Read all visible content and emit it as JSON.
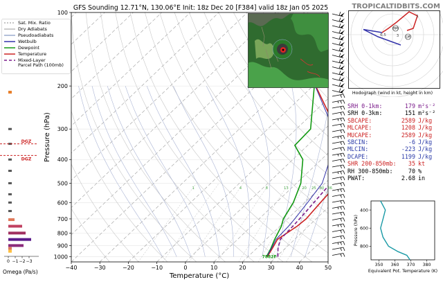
{
  "header": {
    "title": "GFS Sounding 12.71°N, 130.06°E Init: 18z Dec 20 [F384] valid 18z Jan 05 2025",
    "site": "TROPICALTIDBITS.COM"
  },
  "legend": {
    "items": [
      {
        "label": "Sat. Mix. Ratio",
        "color": "#b0b0b0",
        "dash": "2,2"
      },
      {
        "label": "Dry Adiabats",
        "color": "#bbbbbb",
        "dash": ""
      },
      {
        "label": "Pseudoadiabats",
        "color": "#9aaace",
        "dash": ""
      },
      {
        "label": "Wetbulb",
        "color": "#3333aa",
        "dash": ""
      },
      {
        "label": "Dewpoint",
        "color": "#129912",
        "dash": ""
      },
      {
        "label": "Temperature",
        "color": "#cc2222",
        "dash": ""
      },
      {
        "label": "Mixed-Layer\nParcel Path (100mb)",
        "color": "#7a1a8a",
        "dash": "4,3"
      }
    ]
  },
  "chart_data": [
    {
      "type": "line",
      "name": "skew-t",
      "xlabel": "Temperature (°C)",
      "ylabel": "Pressure (hPa)",
      "xlim": [
        -40,
        50
      ],
      "ylim": [
        1050,
        100
      ],
      "yscale": "log",
      "xticks": [
        -40,
        -30,
        -20,
        -10,
        0,
        10,
        20,
        30,
        40,
        50
      ],
      "yticks": [
        100,
        200,
        300,
        400,
        500,
        600,
        700,
        800,
        900,
        1000
      ],
      "series": [
        {
          "name": "Temperature",
          "color": "#cc2222",
          "points": [
            [
              1000,
              26.8
            ],
            [
              925,
              25.5
            ],
            [
              850,
              24.0
            ],
            [
              750,
              26.0
            ],
            [
              700,
              26.5
            ],
            [
              600,
              25.5
            ],
            [
              500,
              24.5
            ],
            [
              400,
              19.0
            ],
            [
              300,
              4.0
            ],
            [
              200,
              -19.0
            ],
            [
              100,
              -33.0
            ]
          ]
        },
        {
          "name": "Dewpoint",
          "color": "#129912",
          "points": [
            [
              1000,
              26.5
            ],
            [
              925,
              25.0
            ],
            [
              850,
              23.0
            ],
            [
              750,
              20.5
            ],
            [
              700,
              18.5
            ],
            [
              600,
              16.0
            ],
            [
              500,
              11.5
            ],
            [
              400,
              3.5
            ],
            [
              350,
              -4.5
            ],
            [
              300,
              -5.0
            ],
            [
              200,
              -19.5
            ],
            [
              100,
              -33.0
            ]
          ]
        },
        {
          "name": "Wetbulb",
          "color": "#3333aa",
          "points": [
            [
              1000,
              26.6
            ],
            [
              925,
              25.2
            ],
            [
              850,
              23.5
            ],
            [
              750,
              23.0
            ],
            [
              700,
              22.5
            ],
            [
              600,
              21.0
            ],
            [
              500,
              19.0
            ],
            [
              400,
              13.0
            ],
            [
              300,
              3.0
            ],
            [
              200,
              -19.2
            ],
            [
              100,
              -33.0
            ]
          ]
        },
        {
          "name": "Mixed-Layer Parcel Path (100mb)",
          "color": "#7a1a8a",
          "dash": "5,3",
          "points": [
            [
              1000,
              30.5
            ],
            [
              925,
              27.5
            ],
            [
              850,
              25.0
            ],
            [
              750,
              24.5
            ],
            [
              700,
              24.2
            ],
            [
              600,
              23.2
            ],
            [
              500,
              22.0
            ],
            [
              400,
              19.5
            ],
            [
              300,
              14.0
            ],
            [
              200,
              6.0
            ],
            [
              100,
              -33.0
            ]
          ]
        }
      ],
      "isotherm_labels": [
        {
          "value": 1,
          "p": 520
        },
        {
          "value": 4,
          "p": 520
        },
        {
          "value": 8,
          "p": 520
        },
        {
          "value": 13,
          "p": 520
        },
        {
          "value": 20,
          "p": 520
        },
        {
          "value": 25,
          "p": 520
        },
        {
          "value": 30,
          "p": 520
        },
        {
          "value": 36,
          "p": 520
        }
      ],
      "parcel_label": {
        "text": "7882F",
        "p": 1000
      }
    },
    {
      "type": "line",
      "name": "theta-e",
      "xlabel": "Equivalent Pot. Temperature (K)",
      "ylabel": "Pressure (hPa)",
      "xlim": [
        345,
        385
      ],
      "ylim": [
        950,
        300
      ],
      "xticks": [
        350,
        360,
        370,
        380
      ],
      "yticks": [
        400,
        600,
        800
      ],
      "series": [
        {
          "name": "theta-e",
          "color": "#1a9aa6",
          "points": [
            [
              300,
              351.0
            ],
            [
              400,
              354.0
            ],
            [
              500,
              352.5
            ],
            [
              600,
              351.0
            ],
            [
              700,
              352.5
            ],
            [
              800,
              356.0
            ],
            [
              860,
              362.0
            ],
            [
              900,
              367.5
            ],
            [
              950,
              369.5
            ]
          ]
        }
      ]
    },
    {
      "type": "bar",
      "name": "omega",
      "xlabel": "Omega (Pa/s)",
      "xticks": [
        0,
        -1,
        -2,
        -3
      ],
      "xlim": [
        1.2,
        -4.2
      ],
      "categories": [
        300,
        350,
        400,
        450,
        500,
        550,
        600,
        650,
        700,
        750,
        800,
        850,
        900,
        925
      ],
      "values": [
        -0.1,
        -0.1,
        -0.1,
        -0.1,
        -0.1,
        -0.1,
        -0.1,
        -0.1,
        -0.1,
        -0.1,
        -0.1,
        -0.1,
        -0.1,
        -0.1
      ],
      "bars": [
        {
          "p": 212,
          "value": -0.5,
          "color": "#e87e2a"
        },
        {
          "p": 300,
          "value": -0.1,
          "color": "#555555"
        },
        {
          "p": 345,
          "value": -0.1,
          "color": "#555555"
        },
        {
          "p": 400,
          "value": -0.1,
          "color": "#555555"
        },
        {
          "p": 445,
          "value": -0.1,
          "color": "#555555"
        },
        {
          "p": 500,
          "value": -0.1,
          "color": "#555555"
        },
        {
          "p": 555,
          "value": -0.1,
          "color": "#555555"
        },
        {
          "p": 600,
          "value": -0.1,
          "color": "#555555"
        },
        {
          "p": 650,
          "value": -0.1,
          "color": "#555555"
        },
        {
          "p": 705,
          "value": -0.9,
          "color": "#e07a5a"
        },
        {
          "p": 750,
          "value": -2.0,
          "color": "#c04060"
        },
        {
          "p": 800,
          "value": -2.5,
          "color": "#a03060"
        },
        {
          "p": 850,
          "value": -3.3,
          "color": "#5a1a8a"
        },
        {
          "p": 900,
          "value": -2.2,
          "color": "#8a2a7a"
        },
        {
          "p": 925,
          "value": -0.5,
          "color": "#e07a5a"
        },
        {
          "p": 950,
          "value": -0.2,
          "color": "#ffc040"
        }
      ],
      "dgz": [
        {
          "label": "DGZ",
          "p": 345
        },
        {
          "label": "DGZ",
          "p": 385
        }
      ]
    },
    {
      "type": "scatter",
      "name": "hodograph",
      "xlabel": "Hodograph (wind in kt, height in km)",
      "segments": [
        {
          "color": "#3333aa",
          "points": [
            [
              -10,
              2
            ],
            [
              -28,
              5
            ],
            [
              -14,
              -2
            ],
            [
              8,
              -10
            ]
          ]
        },
        {
          "color": "#cc2222",
          "points": [
            [
              -10,
              2
            ],
            [
              -4,
              6
            ],
            [
              4,
              12
            ],
            [
              16,
              22
            ],
            [
              24,
              18
            ],
            [
              20,
              6
            ],
            [
              14,
              4
            ]
          ]
        }
      ],
      "height_labels": [
        {
          "text": "6.5",
          "x": -9,
          "y": 0
        },
        {
          "text": "3",
          "x": 5,
          "y": -0.5
        },
        {
          "text": "1",
          "x": 24,
          "y": 18
        }
      ],
      "markers": [
        {
          "text": "RM",
          "x": 3,
          "y": 6
        },
        {
          "text": "LM",
          "x": 15,
          "y": -2
        }
      ]
    }
  ],
  "inset_map": {
    "center_label": "storm"
  },
  "stats": [
    {
      "label": "SRH 0-1km:",
      "value": "179",
      "unit": "m²s⁻²",
      "color": "#7a1a8a"
    },
    {
      "label": "SRH 0-3km:",
      "value": "151",
      "unit": "m²s⁻²",
      "color": "#000000"
    },
    {
      "label": "SBCAPE:",
      "value": "2589",
      "unit": "J/kg",
      "color": "#cc2222"
    },
    {
      "label": "MLCAPE:",
      "value": "1208",
      "unit": "J/kg",
      "color": "#cc2222"
    },
    {
      "label": "MUCAPE:",
      "value": "2589",
      "unit": "J/kg",
      "color": "#cc2222"
    },
    {
      "label": "SBCIN:",
      "value": "-6",
      "unit": "J/kg",
      "color": "#2a3aa8"
    },
    {
      "label": "MLCIN:",
      "value": "-223",
      "unit": "J/kg",
      "color": "#2a3aa8"
    },
    {
      "label": "DCAPE:",
      "value": "1199",
      "unit": "J/kg",
      "color": "#2a3aa8"
    },
    {
      "label": "SHR 200-850mb:",
      "value": "35",
      "unit": "kt",
      "color": "#cc2222"
    },
    {
      "label": "RH 300-850mb:",
      "value": "70",
      "unit": "%",
      "color": "#000000"
    },
    {
      "label": "PWAT:",
      "value": "2.68",
      "unit": "in",
      "color": "#000000"
    }
  ]
}
